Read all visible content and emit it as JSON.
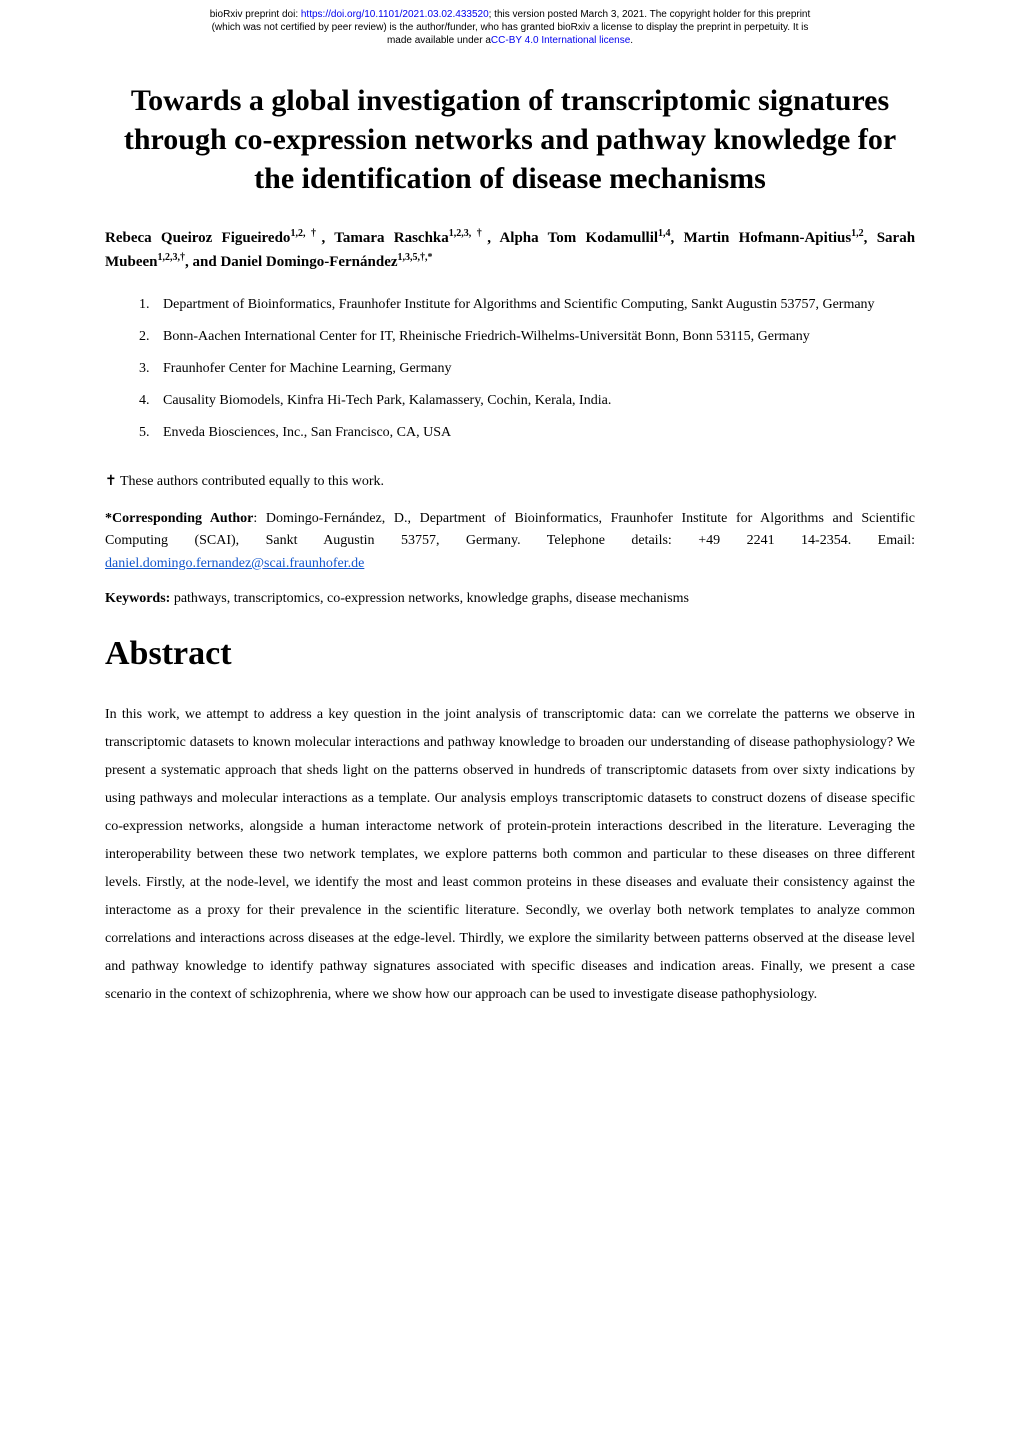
{
  "preprint": {
    "line1_prefix": "bioRxiv preprint doi: ",
    "doi_url": "https://doi.org/10.1101/2021.03.02.433520",
    "line1_suffix": "; this version posted March 3, 2021. The copyright holder for this preprint",
    "line2": "(which was not certified by peer review) is the author/funder, who has granted bioRxiv a license to display the preprint in perpetuity. It is",
    "line3_prefix": "made available under a",
    "license_text": "CC-BY 4.0 International license",
    "line3_suffix": "."
  },
  "title": "Towards a global investigation of transcriptomic signatures through co-expression networks and pathway knowledge for the identification of disease mechanisms",
  "authors": {
    "a1_name": "Rebeca Queiroz Figueiredo",
    "a1_aff": "1,2,†",
    "sep": ", ",
    "a2_name": "Tamara Raschka",
    "a2_aff": "1,2,3,†",
    "a3_name": "Alpha Tom Kodamullil",
    "a3_aff": "1,4",
    "a4_name": "Martin Hofmann-Apitius",
    "a4_aff": "1,2",
    "a5_name": "Sarah Mubeen",
    "a5_aff": "1,2,3,†",
    "and": ", and ",
    "a6_name": "Daniel Domingo-Fernández",
    "a6_aff": "1,3,5,†,*"
  },
  "affiliations": [
    "Department of Bioinformatics, Fraunhofer Institute for Algorithms and Scientific Computing, Sankt Augustin 53757, Germany",
    "Bonn-Aachen International Center for IT, Rheinische Friedrich-Wilhelms-Universität Bonn, Bonn 53115, Germany",
    "Fraunhofer Center for Machine Learning, Germany",
    "Causality Biomodels, Kinfra Hi-Tech Park, Kalamassery, Cochin, Kerala, India.",
    "Enveda Biosciences, Inc., San Francisco, CA, USA"
  ],
  "equal_contrib": "✝ These authors contributed equally to this work.",
  "corresponding": {
    "label": "*Corresponding Author",
    "text_before_email": ": Domingo-Fernández, D., Department of Bioinformatics, Fraunhofer Institute for Algorithms and Scientific Computing (SCAI), Sankt Augustin 53757, Germany. Telephone details: +49 2241 14-2354. Email: ",
    "email": "daniel.domingo.fernandez@scai.fraunhofer.de"
  },
  "keywords": {
    "label": "Keywords:",
    "text": " pathways, transcriptomics, co-expression networks, knowledge graphs, disease mechanisms"
  },
  "abstract": {
    "heading": "Abstract",
    "body": "In this work, we attempt to address a key question in the joint analysis of transcriptomic data: can we correlate the patterns we observe in transcriptomic datasets to known molecular interactions and pathway knowledge to broaden our understanding of disease pathophysiology? We present a systematic approach that sheds light on the patterns observed in hundreds of transcriptomic datasets from over sixty indications by using pathways and molecular interactions as a template. Our analysis employs transcriptomic datasets to construct dozens of disease specific co-expression networks, alongside a human interactome network of protein-protein interactions described in the literature. Leveraging the interoperability between these two network templates, we explore patterns both common and particular to these diseases on three different levels. Firstly, at the node-level, we identify the most and least common proteins in these diseases and evaluate their consistency against the interactome as a proxy for their prevalence in the scientific literature. Secondly, we overlay both network templates to analyze common correlations and interactions across diseases at the edge-level. Thirdly, we explore the similarity between patterns observed at the disease level and pathway knowledge to identify pathway signatures associated with specific diseases and indication areas. Finally, we present a case scenario in the context of schizophrenia, where we show how our approach can be used to investigate disease pathophysiology."
  }
}
